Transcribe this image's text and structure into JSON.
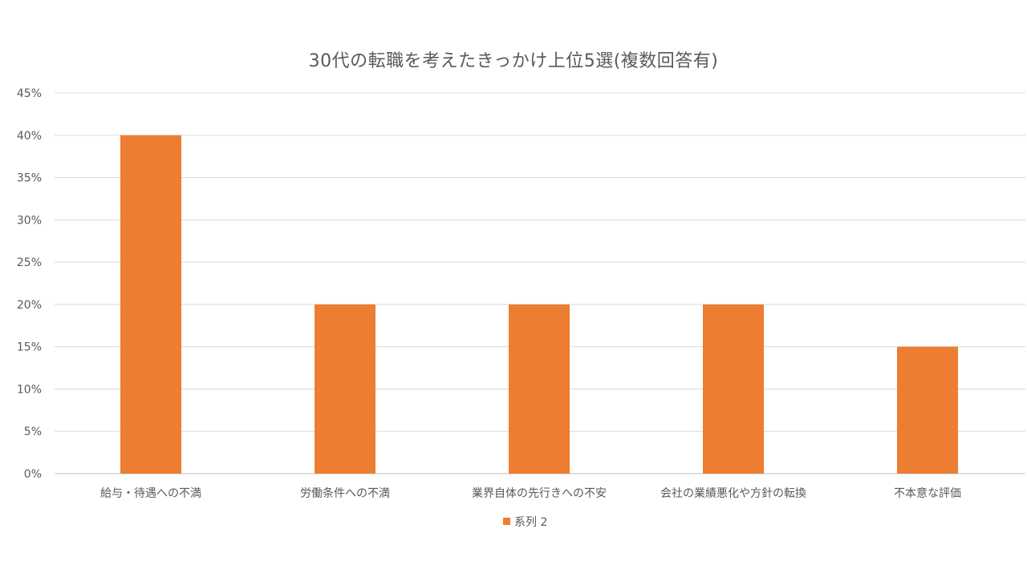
{
  "chart_data": {
    "type": "bar",
    "title": "30代の転職を考えたきっかけ上位5選(複数回答有)",
    "categories": [
      "給与・待遇への不満",
      "労働条件への不満",
      "業界自体の先行きへの不安",
      "会社の業績悪化や方針の転換",
      "不本意な評価"
    ],
    "series": [
      {
        "name": "系列 2",
        "values": [
          40,
          20,
          20,
          20,
          15
        ],
        "color": "#ED7D31"
      }
    ],
    "ylim": [
      0,
      45
    ],
    "ytick_step": 5,
    "ytick_format": "percent",
    "grid": true,
    "legend_position": "bottom",
    "xlabel": "",
    "ylabel": ""
  }
}
